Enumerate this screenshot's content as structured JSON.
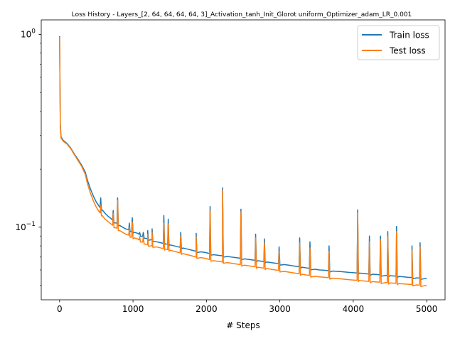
{
  "chart_data": {
    "type": "line",
    "title": "Loss History - Layers_[2, 64, 64, 64, 64, 3]_Activation_tanh_Init_Glorot uniform_Optimizer_adam_LR_0.001",
    "xlabel": "# Steps",
    "ylabel": "",
    "yscale": "log",
    "xlim": [
      -250,
      5250
    ],
    "ylim": [
      0.042,
      1.19
    ],
    "x_ticks": [
      0,
      1000,
      2000,
      3000,
      4000,
      5000
    ],
    "x_tick_labels": [
      "0",
      "1000",
      "2000",
      "3000",
      "4000",
      "5000"
    ],
    "y_major_ticks": [
      0.1,
      1
    ],
    "y_major_tick_labels": [
      "10^-1",
      "10^0"
    ],
    "y_minor_ticks": [
      0.05,
      0.06,
      0.07,
      0.08,
      0.09,
      0.2,
      0.3,
      0.4,
      0.5,
      0.6,
      0.7,
      0.8,
      0.9
    ],
    "grid": false,
    "legend_position": "top-right",
    "series": [
      {
        "name": "Train loss",
        "color": "#1f77b4",
        "x": [
          0,
          10,
          20,
          40,
          60,
          100,
          150,
          200,
          250,
          300,
          350,
          380,
          420,
          460,
          500,
          540,
          580,
          620,
          660,
          700,
          740,
          780,
          820,
          860,
          900,
          940,
          980,
          1020,
          1060,
          1100,
          1150,
          1200,
          1260,
          1320,
          1380,
          1440,
          1500,
          1560,
          1620,
          1680,
          1740,
          1800,
          1860,
          1920,
          1980,
          2040,
          2100,
          2160,
          2220,
          2280,
          2340,
          2400,
          2460,
          2520,
          2580,
          2640,
          2700,
          2760,
          2820,
          2880,
          2940,
          3000,
          3060,
          3120,
          3180,
          3240,
          3300,
          3360,
          3420,
          3480,
          3540,
          3600,
          3660,
          3720,
          3780,
          3840,
          3900,
          3960,
          4020,
          4080,
          4140,
          4200,
          4260,
          4320,
          4380,
          4440,
          4500,
          4560,
          4620,
          4680,
          4740,
          4800,
          4860,
          4920,
          4980,
          5000
        ],
        "y": [
          0.98,
          0.34,
          0.295,
          0.285,
          0.28,
          0.272,
          0.258,
          0.24,
          0.225,
          0.21,
          0.193,
          0.175,
          0.158,
          0.145,
          0.135,
          0.128,
          0.123,
          0.118,
          0.114,
          0.111,
          0.107,
          0.105,
          0.102,
          0.1,
          0.098,
          0.097,
          0.095,
          0.094,
          0.093,
          0.091,
          0.089,
          0.087,
          0.086,
          0.084,
          0.083,
          0.082,
          0.081,
          0.08,
          0.079,
          0.078,
          0.077,
          0.076,
          0.075,
          0.0745,
          0.074,
          0.073,
          0.072,
          0.0715,
          0.071,
          0.0705,
          0.07,
          0.0695,
          0.069,
          0.0685,
          0.068,
          0.0675,
          0.067,
          0.0665,
          0.066,
          0.0655,
          0.065,
          0.0645,
          0.064,
          0.0635,
          0.063,
          0.0625,
          0.062,
          0.0615,
          0.061,
          0.0605,
          0.06,
          0.0598,
          0.0595,
          0.0592,
          0.059,
          0.0588,
          0.0585,
          0.0582,
          0.058,
          0.0578,
          0.0575,
          0.0572,
          0.057,
          0.0568,
          0.0565,
          0.0562,
          0.056,
          0.0558,
          0.0555,
          0.0553,
          0.055,
          0.0548,
          0.0546,
          0.0544,
          0.0542,
          0.054
        ],
        "spikes": [
          [
            560,
            0.142
          ],
          [
            730,
            0.122
          ],
          [
            790,
            0.142
          ],
          [
            950,
            0.105
          ],
          [
            990,
            0.112
          ],
          [
            1090,
            0.094
          ],
          [
            1140,
            0.094
          ],
          [
            1200,
            0.096
          ],
          [
            1260,
            0.098
          ],
          [
            1420,
            0.115
          ],
          [
            1480,
            0.11
          ],
          [
            1650,
            0.094
          ],
          [
            1860,
            0.093
          ],
          [
            2050,
            0.128
          ],
          [
            2220,
            0.16
          ],
          [
            2470,
            0.124
          ],
          [
            2670,
            0.092
          ],
          [
            2790,
            0.087
          ],
          [
            2990,
            0.079
          ],
          [
            3270,
            0.088
          ],
          [
            3410,
            0.084
          ],
          [
            3670,
            0.08
          ],
          [
            4060,
            0.123
          ],
          [
            4220,
            0.09
          ],
          [
            4370,
            0.09
          ],
          [
            4470,
            0.095
          ],
          [
            4590,
            0.101
          ],
          [
            4800,
            0.08
          ],
          [
            4910,
            0.083
          ]
        ]
      },
      {
        "name": "Test loss",
        "color": "#ff7f0e",
        "x": [
          0,
          10,
          20,
          40,
          60,
          100,
          150,
          200,
          250,
          300,
          350,
          380,
          420,
          460,
          500,
          540,
          580,
          620,
          660,
          700,
          740,
          780,
          820,
          860,
          900,
          940,
          980,
          1020,
          1060,
          1100,
          1150,
          1200,
          1260,
          1320,
          1380,
          1440,
          1500,
          1560,
          1620,
          1680,
          1740,
          1800,
          1860,
          1920,
          1980,
          2040,
          2100,
          2160,
          2220,
          2280,
          2340,
          2400,
          2460,
          2520,
          2580,
          2640,
          2700,
          2760,
          2820,
          2880,
          2940,
          3000,
          3060,
          3120,
          3180,
          3240,
          3300,
          3360,
          3420,
          3480,
          3540,
          3600,
          3660,
          3720,
          3780,
          3840,
          3900,
          3960,
          4020,
          4080,
          4140,
          4200,
          4260,
          4320,
          4380,
          4440,
          4500,
          4560,
          4620,
          4680,
          4740,
          4800,
          4860,
          4920,
          4980,
          5000
        ],
        "y": [
          0.97,
          0.33,
          0.29,
          0.282,
          0.277,
          0.27,
          0.256,
          0.238,
          0.222,
          0.207,
          0.188,
          0.168,
          0.15,
          0.137,
          0.127,
          0.12,
          0.115,
          0.11,
          0.107,
          0.104,
          0.101,
          0.099,
          0.096,
          0.094,
          0.092,
          0.091,
          0.089,
          0.088,
          0.087,
          0.085,
          0.083,
          0.081,
          0.08,
          0.079,
          0.078,
          0.077,
          0.076,
          0.075,
          0.074,
          0.073,
          0.072,
          0.071,
          0.07,
          0.0695,
          0.069,
          0.068,
          0.067,
          0.0665,
          0.066,
          0.0655,
          0.065,
          0.0645,
          0.064,
          0.0635,
          0.063,
          0.0625,
          0.062,
          0.0615,
          0.061,
          0.0605,
          0.06,
          0.0595,
          0.059,
          0.0585,
          0.058,
          0.0575,
          0.057,
          0.0565,
          0.056,
          0.0556,
          0.0552,
          0.055,
          0.0547,
          0.0544,
          0.0541,
          0.0539,
          0.0536,
          0.0533,
          0.0531,
          0.0529,
          0.0526,
          0.0524,
          0.0522,
          0.052,
          0.0518,
          0.0516,
          0.0514,
          0.0512,
          0.051,
          0.0508,
          0.0506,
          0.0504,
          0.0502,
          0.05,
          0.0498,
          0.0497
        ],
        "spikes": [
          [
            560,
            0.13
          ],
          [
            730,
            0.118
          ],
          [
            790,
            0.138
          ],
          [
            950,
            0.1
          ],
          [
            990,
            0.106
          ],
          [
            1090,
            0.089
          ],
          [
            1140,
            0.09
          ],
          [
            1200,
            0.092
          ],
          [
            1260,
            0.094
          ],
          [
            1420,
            0.105
          ],
          [
            1480,
            0.104
          ],
          [
            1650,
            0.09
          ],
          [
            1860,
            0.089
          ],
          [
            2050,
            0.122
          ],
          [
            2220,
            0.155
          ],
          [
            2470,
            0.12
          ],
          [
            2670,
            0.088
          ],
          [
            2790,
            0.083
          ],
          [
            2990,
            0.075
          ],
          [
            3270,
            0.083
          ],
          [
            3410,
            0.078
          ],
          [
            3670,
            0.075
          ],
          [
            4060,
            0.118
          ],
          [
            4220,
            0.084
          ],
          [
            4370,
            0.086
          ],
          [
            4470,
            0.09
          ],
          [
            4590,
            0.095
          ],
          [
            4800,
            0.076
          ],
          [
            4910,
            0.079
          ]
        ]
      }
    ]
  }
}
